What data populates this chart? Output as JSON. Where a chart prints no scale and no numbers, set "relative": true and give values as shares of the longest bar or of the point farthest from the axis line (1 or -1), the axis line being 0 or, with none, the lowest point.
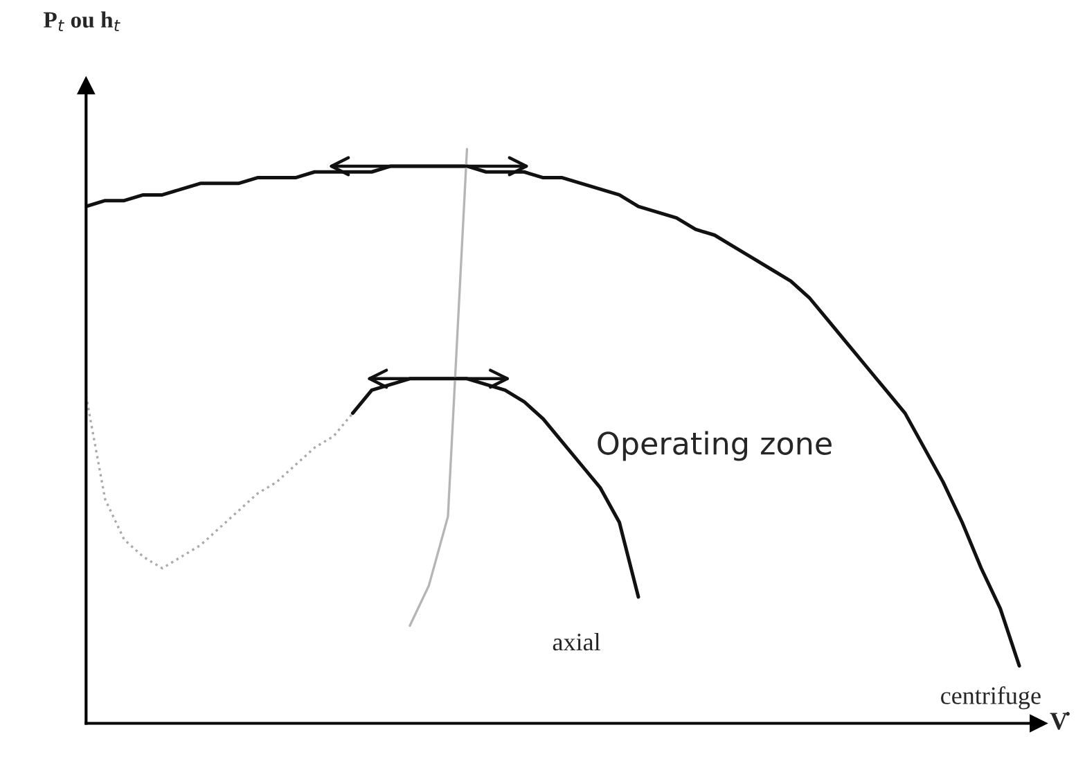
{
  "chart_data": {
    "type": "line",
    "relative": true,
    "xlabel": "V̇",
    "categories": [
      null,
      null,
      null,
      null,
      null,
      null,
      null,
      null,
      null,
      null,
      null,
      null,
      null,
      null,
      null,
      null,
      null,
      null,
      null,
      null,
      null,
      null,
      null,
      null,
      null,
      null,
      null,
      null,
      null,
      null,
      null,
      null,
      null,
      null,
      null,
      null,
      null,
      null,
      null,
      null,
      null,
      null,
      null,
      null,
      null,
      null,
      null,
      null,
      null,
      null
    ],
    "series": [
      {
        "color": "#111111",
        "line_style": "solid",
        "values": [
          0.9,
          0.91,
          0.91,
          0.92,
          0.92,
          0.93,
          0.94,
          0.94,
          0.94,
          0.95,
          0.95,
          0.95,
          0.96,
          0.96,
          0.96,
          0.96,
          0.97,
          0.97,
          0.97,
          0.97,
          0.97,
          0.96,
          0.96,
          0.96,
          0.95,
          0.95,
          0.94,
          0.93,
          0.92,
          0.9,
          0.89,
          0.88,
          0.86,
          0.85,
          0.83,
          0.81,
          0.79,
          0.77,
          0.74,
          0.7,
          0.66,
          0.62,
          0.58,
          0.54,
          0.48,
          0.42,
          0.35,
          0.27,
          0.2,
          0.1
        ]
      },
      {
        "color": "#111111",
        "line_style": "solid",
        "values": [
          null,
          null,
          null,
          null,
          null,
          null,
          null,
          null,
          null,
          null,
          null,
          null,
          null,
          null,
          0.54,
          0.58,
          0.59,
          0.6,
          0.6,
          0.6,
          0.6,
          0.59,
          0.58,
          0.56,
          0.53,
          0.49,
          0.45,
          0.41,
          0.35,
          0.22,
          null,
          null,
          null,
          null,
          null,
          null,
          null,
          null,
          null,
          null,
          null,
          null,
          null,
          null,
          null,
          null,
          null,
          null,
          null,
          null
        ]
      },
      {
        "color": "#aaaaaa",
        "line_style": "dotted",
        "values": [
          0.57,
          0.39,
          0.32,
          0.29,
          0.27,
          0.29,
          0.31,
          0.34,
          0.37,
          0.4,
          0.42,
          0.45,
          0.48,
          0.5,
          0.54,
          null,
          null,
          null,
          null,
          null,
          null,
          null,
          null,
          null,
          null,
          null,
          null,
          null,
          null,
          null,
          null,
          null,
          null,
          null,
          null,
          null,
          null,
          null,
          null,
          null,
          null,
          null,
          null,
          null,
          null,
          null,
          null,
          null,
          null,
          null
        ]
      },
      {
        "color": "#b5b5b5",
        "line_style": "solid",
        "values": [
          null,
          null,
          null,
          null,
          null,
          null,
          null,
          null,
          null,
          null,
          null,
          null,
          null,
          null,
          null,
          null,
          null,
          0.17,
          0.24,
          0.36,
          1.0,
          null,
          null,
          null,
          null,
          null,
          null,
          null,
          null,
          null,
          null,
          null,
          null,
          null,
          null,
          null,
          null,
          null,
          null,
          null,
          null,
          null,
          null,
          null,
          null,
          null,
          null,
          null,
          null,
          null
        ]
      }
    ],
    "annotations": [
      "P$_{t}$ ou h$_{t}$",
      "axial",
      "centrifuge",
      "Operating zone"
    ]
  }
}
